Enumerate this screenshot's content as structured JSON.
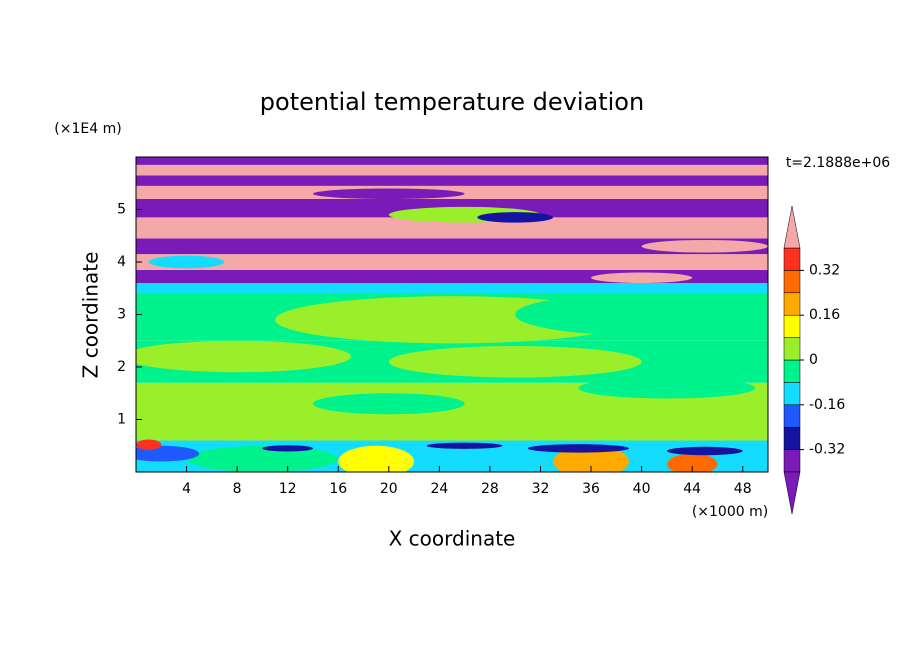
{
  "chart_data": {
    "type": "contour",
    "title": "potential temperature deviation",
    "x_label": "X coordinate",
    "y_label": "Z coordinate",
    "x_unit": "(×1000 m)",
    "y_unit": "(×1E4 m)",
    "annotation": "t=2.1888e+06",
    "xlim": [
      0,
      50
    ],
    "xticks": [
      4,
      8,
      12,
      16,
      20,
      24,
      28,
      32,
      36,
      40,
      44,
      48
    ],
    "ylim": [
      0,
      6
    ],
    "yticks": [
      1,
      2,
      3,
      4,
      5
    ],
    "colorbar": {
      "clim": [
        -0.4,
        0.4
      ],
      "ticks": [
        -0.32,
        -0.16,
        0,
        0.16,
        0.32
      ],
      "colors": [
        "#7a1ab8",
        "#1414a0",
        "#1e5aff",
        "#14dcff",
        "#00f28c",
        "#9bee2a",
        "#ffff00",
        "#ffaa00",
        "#ff6a00",
        "#ff3020"
      ],
      "under_color": "#7a1ab8",
      "over_color": "#f5a8a8"
    }
  }
}
